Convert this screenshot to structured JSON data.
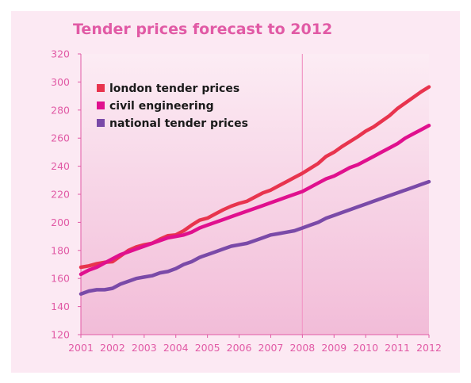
{
  "chart_data": {
    "type": "line",
    "title": "Tender prices forecast to 2012",
    "xlabel": "",
    "ylabel": "",
    "x_ticks": [
      "2001",
      "2002",
      "2003",
      "2004",
      "2005",
      "2006",
      "2007",
      "2008",
      "2009",
      "2010",
      "2011",
      "2012"
    ],
    "y_ticks": [
      120,
      140,
      160,
      180,
      200,
      220,
      240,
      260,
      280,
      300,
      320
    ],
    "xlim": [
      2001,
      2012
    ],
    "ylim": [
      120,
      320
    ],
    "reference_line_x": 2008,
    "legend_position": "top-left",
    "grid": false,
    "colors": {
      "background": "#fce9f3",
      "plot_top": "#fcecf4",
      "plot_bottom": "#f2bcd8",
      "axis": "#e15aa5",
      "reference_line": "#f29cc8",
      "title": "#e15aa5"
    },
    "series": [
      {
        "name": "london tender prices",
        "color": "#e8344e",
        "x": [
          2001,
          2001.25,
          2001.5,
          2001.75,
          2002,
          2002.25,
          2002.5,
          2002.75,
          2003,
          2003.25,
          2003.5,
          2003.75,
          2004,
          2004.25,
          2004.5,
          2004.75,
          2005,
          2005.25,
          2005.5,
          2005.75,
          2006,
          2006.25,
          2006.5,
          2006.75,
          2007,
          2007.25,
          2007.5,
          2007.75,
          2008,
          2008.25,
          2008.5,
          2008.75,
          2009,
          2009.25,
          2009.5,
          2009.75,
          2010,
          2010.25,
          2010.5,
          2010.75,
          2011,
          2011.25,
          2011.5,
          2011.75,
          2012
        ],
        "y": [
          168,
          169,
          170.5,
          171.5,
          172,
          176,
          180,
          182.5,
          184,
          185,
          188,
          190.5,
          191,
          194,
          198,
          201.5,
          203,
          206,
          209,
          211.5,
          213.5,
          215,
          218,
          221,
          223,
          226,
          229,
          232,
          235,
          238.5,
          242,
          247,
          250,
          254,
          257.5,
          261,
          265,
          268,
          272,
          276,
          281,
          285,
          289,
          293,
          296.5
        ]
      },
      {
        "name": "civil engineering",
        "color": "#e0108e",
        "x": [
          2001,
          2001.25,
          2001.5,
          2001.75,
          2002,
          2002.25,
          2002.5,
          2002.75,
          2003,
          2003.25,
          2003.5,
          2003.75,
          2004,
          2004.25,
          2004.5,
          2004.75,
          2005,
          2005.25,
          2005.5,
          2005.75,
          2006,
          2006.25,
          2006.5,
          2006.75,
          2007,
          2007.25,
          2007.5,
          2007.75,
          2008,
          2008.25,
          2008.5,
          2008.75,
          2009,
          2009.25,
          2009.5,
          2009.75,
          2010,
          2010.25,
          2010.5,
          2010.75,
          2011,
          2011.25,
          2011.5,
          2011.75,
          2012
        ],
        "y": [
          163,
          166,
          168,
          171,
          174,
          177,
          179,
          181,
          183,
          185,
          187,
          189,
          190,
          191,
          193,
          196,
          198,
          200,
          202,
          204,
          206,
          208,
          210,
          212,
          214,
          216,
          218,
          220,
          222,
          225,
          228,
          231,
          233,
          236,
          239,
          241,
          244,
          247,
          250,
          253,
          256,
          260,
          263,
          266,
          269
        ]
      },
      {
        "name": "national tender prices",
        "color": "#7a4aa8",
        "x": [
          2001,
          2001.25,
          2001.5,
          2001.75,
          2002,
          2002.25,
          2002.5,
          2002.75,
          2003,
          2003.25,
          2003.5,
          2003.75,
          2004,
          2004.25,
          2004.5,
          2004.75,
          2005,
          2005.25,
          2005.5,
          2005.75,
          2006,
          2006.25,
          2006.5,
          2006.75,
          2007,
          2007.25,
          2007.5,
          2007.75,
          2008,
          2008.25,
          2008.5,
          2008.75,
          2009,
          2009.25,
          2009.5,
          2009.75,
          2010,
          2010.25,
          2010.5,
          2010.75,
          2011,
          2011.25,
          2011.5,
          2011.75,
          2012
        ],
        "y": [
          149,
          151,
          152,
          152,
          153,
          156,
          158,
          160,
          161,
          162,
          164,
          165,
          167,
          170,
          172,
          175,
          177,
          179,
          181,
          183,
          184,
          185,
          187,
          189,
          191,
          192,
          193,
          194,
          196,
          198,
          200,
          203,
          205,
          207,
          209,
          211,
          213,
          215,
          217,
          219,
          221,
          223,
          225,
          227,
          229
        ]
      }
    ]
  }
}
